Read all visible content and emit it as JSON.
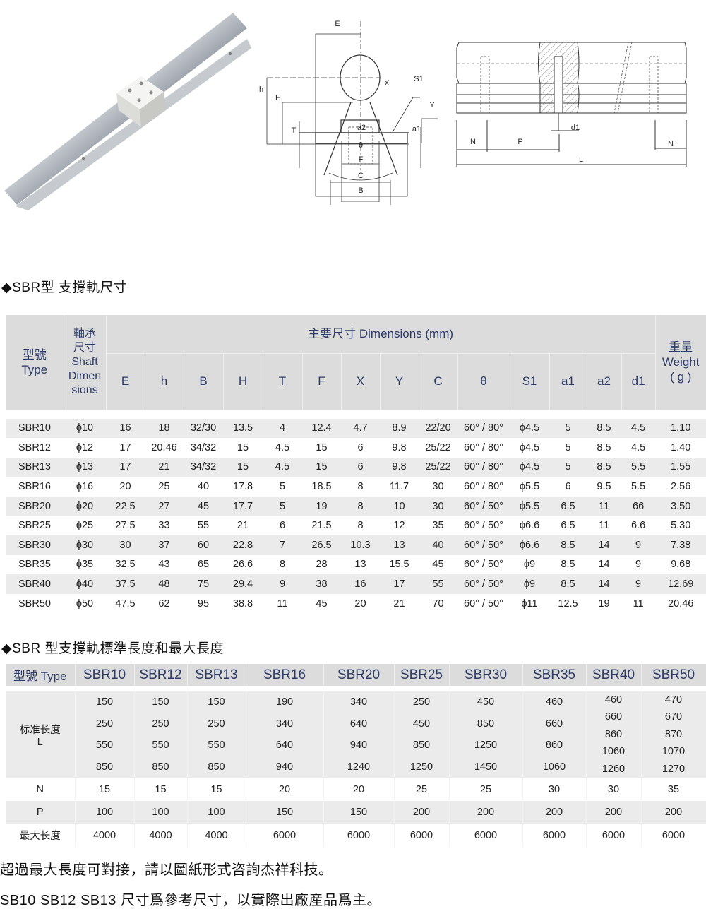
{
  "diagram": {
    "cross_section_labels": {
      "E": "E",
      "h": "h",
      "H": "H",
      "T": "T",
      "X": "X",
      "S1": "S1",
      "Y": "Y",
      "a2": "a2",
      "a1": "a1",
      "theta": "θ",
      "F": "F",
      "C": "C",
      "B": "B"
    },
    "side_view_labels": {
      "N_left": "N",
      "P": "P",
      "d1": "d1",
      "N_right": "N",
      "L": "L"
    }
  },
  "section1": {
    "title": "◆SBR型 支撐軌尺寸",
    "header": {
      "type_cn": "型號",
      "type_en": "Type",
      "shaft_cn": "軸承尺寸",
      "shaft_en": "Shaft Dimensions",
      "dims_group": "主要尺寸  Dimensions (mm)",
      "weight_cn": "重量",
      "weight_en": "Weight",
      "weight_unit": "( g )",
      "columns": [
        "E",
        "h",
        "B",
        "H",
        "T",
        "F",
        "X",
        "Y",
        "C",
        "θ",
        "S1",
        "a1",
        "a2",
        "d1"
      ]
    },
    "rows": [
      [
        "SBR10",
        "ϕ10",
        "16",
        "18",
        "32/30",
        "13.5",
        "4",
        "12.4",
        "4.7",
        "8.9",
        "22/20",
        "60° / 80°",
        "ϕ4.5",
        "5",
        "8.5",
        "4.5",
        "1.10"
      ],
      [
        "SBR12",
        "ϕ12",
        "17",
        "20.46",
        "34/32",
        "15",
        "4.5",
        "15",
        "6",
        "9.8",
        "25/22",
        "60° / 80°",
        "ϕ4.5",
        "5",
        "8.5",
        "4.5",
        "1.40"
      ],
      [
        "SBR13",
        "ϕ13",
        "17",
        "21",
        "34/32",
        "15",
        "4.5",
        "15",
        "6",
        "9.8",
        "25/22",
        "60° / 80°",
        "ϕ4.5",
        "5",
        "8.5",
        "5.5",
        "1.55"
      ],
      [
        "SBR16",
        "ϕ16",
        "20",
        "25",
        "40",
        "17.8",
        "5",
        "18.5",
        "8",
        "11.7",
        "30",
        "60° / 80°",
        "ϕ5.5",
        "6",
        "9.5",
        "5.5",
        "2.56"
      ],
      [
        "SBR20",
        "ϕ20",
        "22.5",
        "27",
        "45",
        "17.7",
        "5",
        "19",
        "8",
        "10",
        "30",
        "60° / 50°",
        "ϕ5.5",
        "6.5",
        "11",
        "66",
        "3.50"
      ],
      [
        "SBR25",
        "ϕ25",
        "27.5",
        "33",
        "55",
        "21",
        "6",
        "21.5",
        "8",
        "12",
        "35",
        "60° / 50°",
        "ϕ6.6",
        "6.5",
        "11",
        "6.6",
        "5.30"
      ],
      [
        "SBR30",
        "ϕ30",
        "30",
        "37",
        "60",
        "22.8",
        "7",
        "26.5",
        "10.3",
        "13",
        "40",
        "60° / 50°",
        "ϕ6.6",
        "8.5",
        "14",
        "9",
        "7.38"
      ],
      [
        "SBR35",
        "ϕ35",
        "32.5",
        "43",
        "65",
        "26.6",
        "8",
        "28",
        "13",
        "15.5",
        "45",
        "60° / 50°",
        "ϕ9",
        "8.5",
        "14",
        "9",
        "9.68"
      ],
      [
        "SBR40",
        "ϕ40",
        "37.5",
        "48",
        "75",
        "29.4",
        "9",
        "38",
        "16",
        "17",
        "55",
        "60° / 50°",
        "ϕ9",
        "8.5",
        "14",
        "9",
        "12.69"
      ],
      [
        "SBR50",
        "ϕ50",
        "47.5",
        "62",
        "95",
        "38.8",
        "11",
        "45",
        "20",
        "21",
        "70",
        "60° / 50°",
        "ϕ11",
        "12.5",
        "19",
        "11",
        "20.46"
      ]
    ]
  },
  "section2": {
    "title": "◆SBR 型支撐軌標準長度和最大長度",
    "type_header": "型號 Type",
    "models": [
      "SBR10",
      "SBR12",
      "SBR13",
      "SBR16",
      "SBR20",
      "SBR25",
      "SBR30",
      "SBR35",
      "SBR40",
      "SBR50"
    ],
    "std_length_label": "标准长度",
    "std_length_sub": "L",
    "std_lengths": [
      [
        "150",
        "250",
        "550",
        "850"
      ],
      [
        "150",
        "250",
        "550",
        "850"
      ],
      [
        "150",
        "250",
        "550",
        "850"
      ],
      [
        "190",
        "340",
        "640",
        "940"
      ],
      [
        "340",
        "640",
        "940",
        "1240"
      ],
      [
        "250",
        "450",
        "850",
        "1250"
      ],
      [
        "450",
        "850",
        "1250",
        "1450"
      ],
      [
        "460",
        "660",
        "860",
        "1060"
      ],
      [
        "460",
        "660",
        "860",
        "1060",
        "1260"
      ],
      [
        "470",
        "670",
        "870",
        "1070",
        "1270"
      ]
    ],
    "N_label": "N",
    "N": [
      "15",
      "15",
      "15",
      "20",
      "20",
      "25",
      "25",
      "30",
      "30",
      "35"
    ],
    "P_label": "P",
    "P": [
      "100",
      "100",
      "100",
      "150",
      "150",
      "200",
      "200",
      "200",
      "200",
      "200"
    ],
    "max_label": "最大长度",
    "max": [
      "4000",
      "4000",
      "4000",
      "6000",
      "6000",
      "6000",
      "6000",
      "6000",
      "6000",
      "6000"
    ]
  },
  "footer": {
    "line1": "超過最大長度可對接，請以圖紙形式咨詢杰祥科技。",
    "line2": "SB10 SB12 SB13 尺寸爲參考尺寸，以實際出廠産品爲主。"
  }
}
